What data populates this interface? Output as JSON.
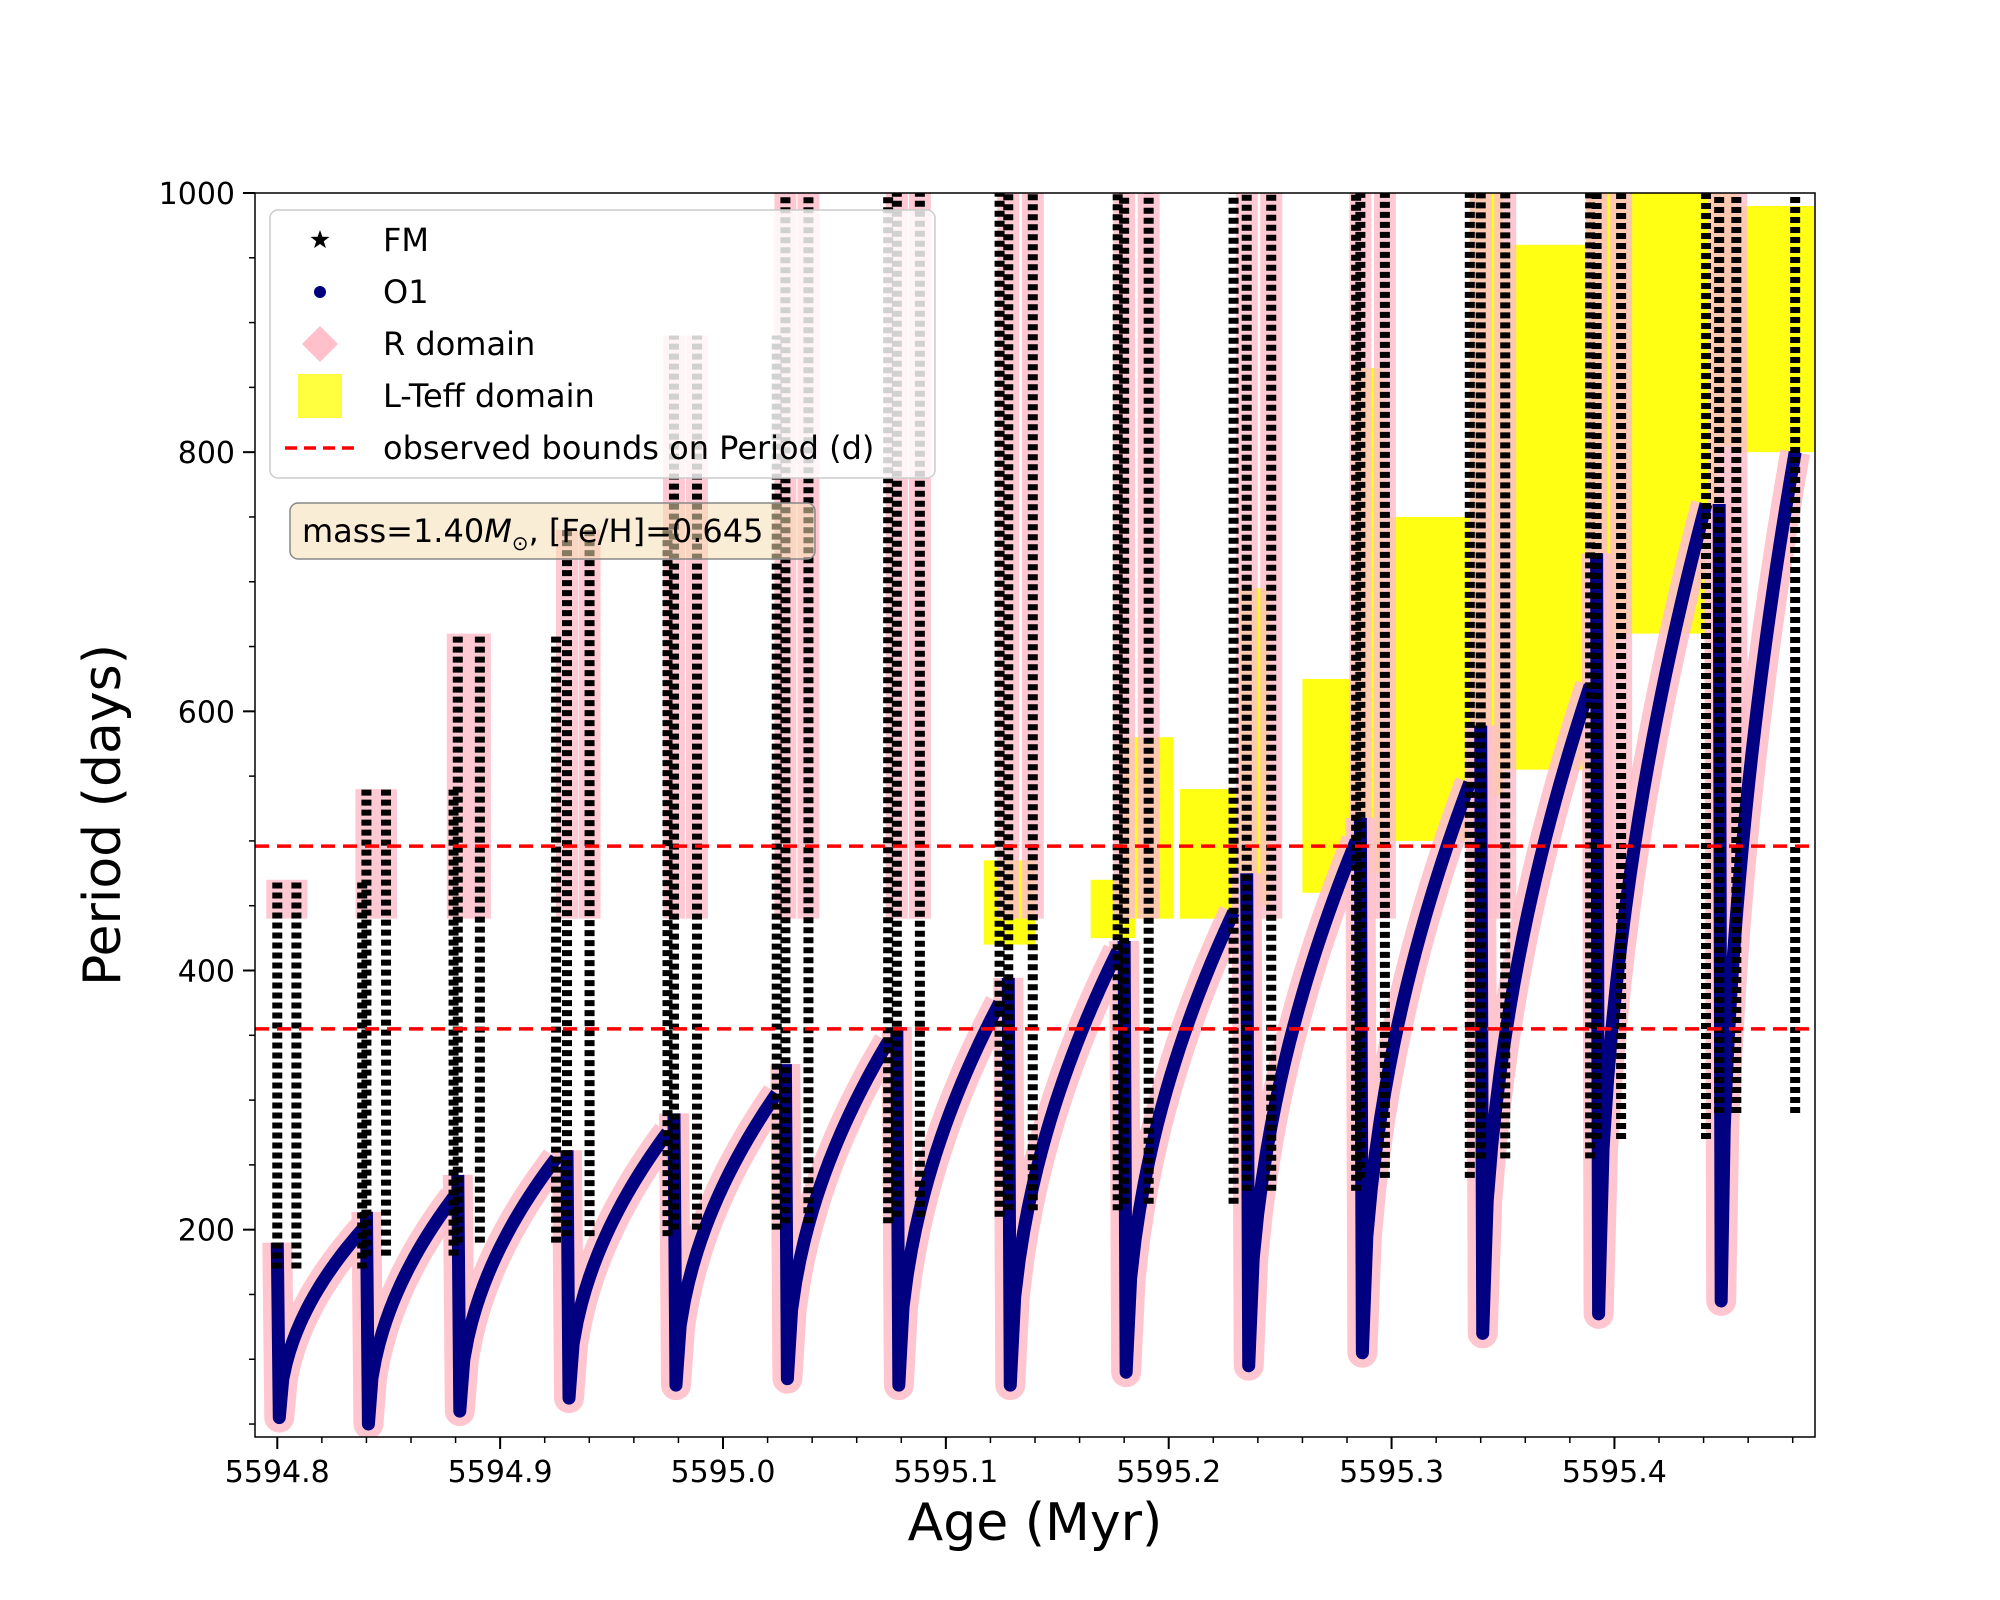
{
  "chart_data": {
    "type": "scatter",
    "xlabel": "Age (Myr)",
    "ylabel": "Period (days)",
    "xlim": [
      5594.79,
      5595.49
    ],
    "ylim": [
      40,
      1000
    ],
    "xticks": [
      "5594.8",
      "5594.9",
      "5595.0",
      "5595.1",
      "5595.2",
      "5595.3",
      "5595.4"
    ],
    "xtick_values": [
      5594.8,
      5594.9,
      5595.0,
      5595.1,
      5595.2,
      5595.3,
      5595.4
    ],
    "yticks": [
      "200",
      "400",
      "600",
      "800",
      "1000"
    ],
    "ytick_values": [
      200,
      400,
      600,
      800,
      1000
    ],
    "legend": {
      "placement": "upper-left",
      "entries": [
        {
          "label": "FM",
          "marker": "star",
          "color": "#000000"
        },
        {
          "label": "O1",
          "marker": "circle",
          "color": "#000080"
        },
        {
          "label": "R domain",
          "marker": "diamond",
          "color": "#ffc0cb"
        },
        {
          "label": "L-Teff domain",
          "marker": "square",
          "color": "#ffff00"
        },
        {
          "label": "observed bounds on Period (d)",
          "marker": "dashed-line",
          "color": "#ff0000"
        }
      ]
    },
    "annotation": {
      "prefix": "mass=1.40",
      "symbol": "M",
      "sub": "⊙",
      "suffix": ", [Fe/H]=0.645"
    },
    "hlines": [
      {
        "y": 355,
        "color": "#ff0000",
        "style": "dashed"
      },
      {
        "y": 496,
        "color": "#ff0000",
        "style": "dashed"
      }
    ],
    "pulses": [
      {
        "t0": 5594.8,
        "dt": 0.039,
        "o1_min": 55,
        "o1_max": 200,
        "fm_min": 170,
        "fm_max": 470
      },
      {
        "t0": 5594.84,
        "dt": 0.04,
        "o1_min": 50,
        "o1_max": 225,
        "fm_min": 180,
        "fm_max": 540
      },
      {
        "t0": 5594.881,
        "dt": 0.045,
        "o1_min": 60,
        "o1_max": 255,
        "fm_min": 190,
        "fm_max": 660
      },
      {
        "t0": 5594.93,
        "dt": 0.046,
        "o1_min": 70,
        "o1_max": 275,
        "fm_min": 195,
        "fm_max": 740
      },
      {
        "t0": 5594.978,
        "dt": 0.047,
        "o1_min": 80,
        "o1_max": 305,
        "fm_min": 200,
        "fm_max": 890
      },
      {
        "t0": 5595.028,
        "dt": 0.047,
        "o1_min": 85,
        "o1_max": 345,
        "fm_min": 205,
        "fm_max": 1000
      },
      {
        "t0": 5595.078,
        "dt": 0.047,
        "o1_min": 80,
        "o1_max": 375,
        "fm_min": 210,
        "fm_max": 1000
      },
      {
        "t0": 5595.128,
        "dt": 0.05,
        "o1_min": 80,
        "o1_max": 415,
        "fm_min": 215,
        "fm_max": 1000
      },
      {
        "t0": 5595.18,
        "dt": 0.05,
        "o1_min": 90,
        "o1_max": 445,
        "fm_min": 220,
        "fm_max": 1000
      },
      {
        "t0": 5595.235,
        "dt": 0.05,
        "o1_min": 95,
        "o1_max": 500,
        "fm_min": 230,
        "fm_max": 1000
      },
      {
        "t0": 5595.286,
        "dt": 0.05,
        "o1_min": 105,
        "o1_max": 545,
        "fm_min": 240,
        "fm_max": 1000
      },
      {
        "t0": 5595.34,
        "dt": 0.05,
        "o1_min": 120,
        "o1_max": 620,
        "fm_min": 255,
        "fm_max": 1000
      },
      {
        "t0": 5595.392,
        "dt": 0.05,
        "o1_min": 135,
        "o1_max": 760,
        "fm_min": 270,
        "fm_max": 1000
      },
      {
        "t0": 5595.447,
        "dt": 0.035,
        "o1_min": 145,
        "o1_max": 800,
        "fm_min": 290,
        "fm_max": 1000
      }
    ],
    "lteff_blocks": [
      {
        "x0": 5595.117,
        "x1": 5595.14,
        "y0": 420,
        "y1": 485
      },
      {
        "x0": 5595.165,
        "x1": 5595.185,
        "y0": 425,
        "y1": 470
      },
      {
        "x0": 5595.18,
        "x1": 5595.202,
        "y0": 440,
        "y1": 580
      },
      {
        "x0": 5595.205,
        "x1": 5595.232,
        "y0": 440,
        "y1": 540
      },
      {
        "x0": 5595.232,
        "x1": 5595.245,
        "y0": 450,
        "y1": 695
      },
      {
        "x0": 5595.26,
        "x1": 5595.29,
        "y0": 460,
        "y1": 625
      },
      {
        "x0": 5595.283,
        "x1": 5595.296,
        "y0": 475,
        "y1": 865
      },
      {
        "x0": 5595.298,
        "x1": 5595.34,
        "y0": 500,
        "y1": 750
      },
      {
        "x0": 5595.335,
        "x1": 5595.35,
        "y0": 535,
        "y1": 1000
      },
      {
        "x0": 5595.35,
        "x1": 5595.392,
        "y0": 555,
        "y1": 960
      },
      {
        "x0": 5595.387,
        "x1": 5595.4,
        "y0": 640,
        "y1": 1000
      },
      {
        "x0": 5595.4,
        "x1": 5595.446,
        "y0": 660,
        "y1": 1000
      },
      {
        "x0": 5595.442,
        "x1": 5595.455,
        "y0": 805,
        "y1": 1000
      },
      {
        "x0": 5595.455,
        "x1": 5595.49,
        "y0": 800,
        "y1": 990
      }
    ]
  }
}
